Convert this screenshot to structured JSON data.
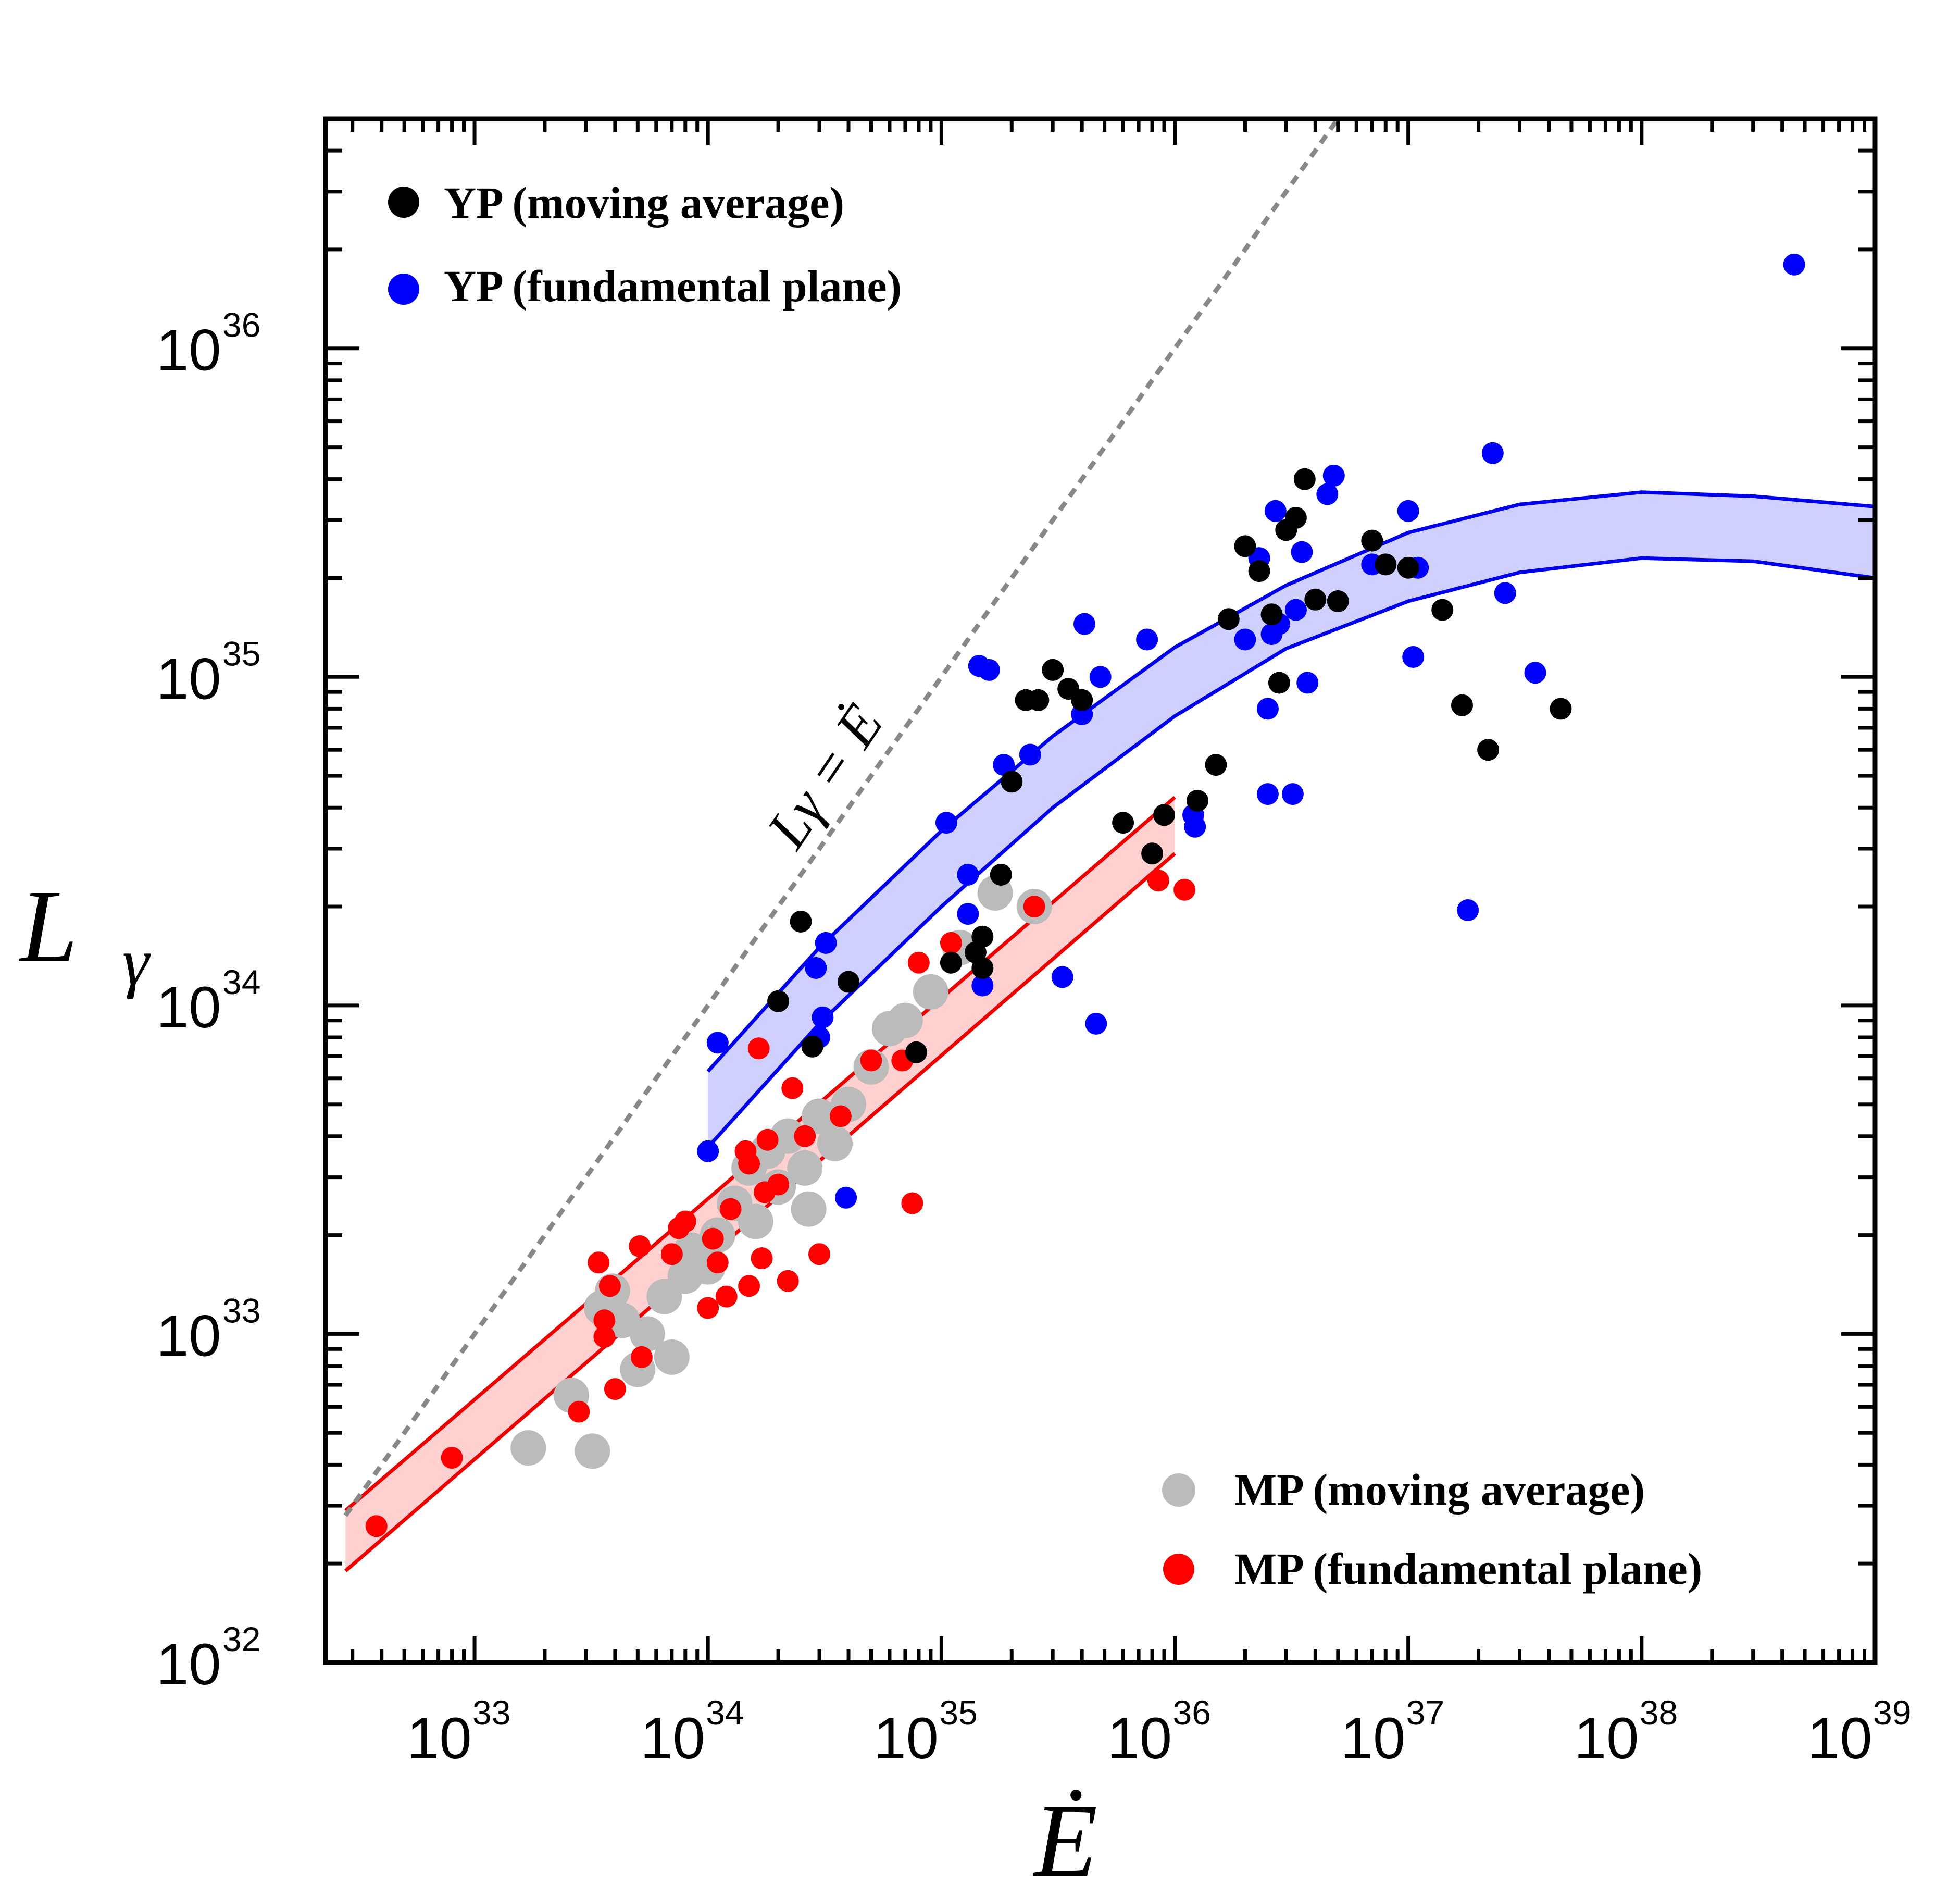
{
  "chart_data": {
    "type": "scatter",
    "xscale": "log",
    "yscale": "log",
    "xlim": [
      2.3e+32,
      1e+39
    ],
    "ylim": [
      1e+32,
      5e+36
    ],
    "ylabel": "L",
    "ylabel_sub": "γ",
    "xlabel": "Ė",
    "diagonal_label": "Lγ = Ė",
    "x_ticks": [
      {
        "base": "10",
        "exp": "33",
        "value": 1e+33
      },
      {
        "base": "10",
        "exp": "34",
        "value": 1e+34
      },
      {
        "base": "10",
        "exp": "35",
        "value": 1e+35
      },
      {
        "base": "10",
        "exp": "36",
        "value": 1e+36
      },
      {
        "base": "10",
        "exp": "37",
        "value": 1e+37
      },
      {
        "base": "10",
        "exp": "38",
        "value": 1e+38
      },
      {
        "base": "10",
        "exp": "39",
        "value": 1e+39
      }
    ],
    "y_ticks": [
      {
        "base": "10",
        "exp": "32",
        "value": 1e+32
      },
      {
        "base": "10",
        "exp": "33",
        "value": 1e+33
      },
      {
        "base": "10",
        "exp": "34",
        "value": 1e+34
      },
      {
        "base": "10",
        "exp": "35",
        "value": 1e+35
      },
      {
        "base": "10",
        "exp": "36",
        "value": 1e+36
      }
    ],
    "legend": {
      "top_left": [
        {
          "label": "YP (moving average)",
          "color": "#000000"
        },
        {
          "label": "YP (fundamental plane)",
          "color": "#0000ff"
        }
      ],
      "bottom_right": [
        {
          "label": "MP (moving average)",
          "color": "#bbbbbb"
        },
        {
          "label": "MP (fundamental plane)",
          "color": "#ff0000"
        }
      ]
    },
    "bands": [
      {
        "name": "YP band",
        "line_color": "#0000ee",
        "fill_color": "#c8c8ff",
        "upper": [
          [
            1e+34,
            6.3e+33
          ],
          [
            3e+34,
            1.5e+34
          ],
          [
            1e+35,
            3.4e+34
          ],
          [
            3e+35,
            6.6e+34
          ],
          [
            1e+36,
            1.23e+35
          ],
          [
            3e+36,
            1.9e+35
          ],
          [
            1e+37,
            2.75e+35
          ],
          [
            3e+37,
            3.35e+35
          ],
          [
            1e+38,
            3.65e+35
          ],
          [
            3e+38,
            3.55e+35
          ],
          [
            1e+39,
            3.3e+35
          ]
        ],
        "lower": [
          [
            1e+34,
            3.7e+33
          ],
          [
            3e+34,
            8.8e+33
          ],
          [
            1e+35,
            2e+34
          ],
          [
            3e+35,
            4e+34
          ],
          [
            1e+36,
            7.6e+34
          ],
          [
            3e+36,
            1.22e+35
          ],
          [
            1e+37,
            1.7e+35
          ],
          [
            3e+37,
            2.08e+35
          ],
          [
            1e+38,
            2.3e+35
          ],
          [
            3e+38,
            2.25e+35
          ],
          [
            1e+39,
            2e+35
          ]
        ]
      },
      {
        "name": "MP band",
        "line_color": "#ee0000",
        "fill_color": "#ffc8c8",
        "upper": [
          [
            2.8e+32,
            2.9e+32
          ],
          [
            1e+36,
            4.3e+34
          ]
        ],
        "lower": [
          [
            2.8e+32,
            1.9e+32
          ],
          [
            1e+36,
            2.9e+34
          ]
        ]
      }
    ],
    "series": [
      {
        "name": "YP (moving average)",
        "color": "#000000",
        "points": [
          [
            2.5e+34,
            1.8e+34
          ],
          [
            2e+34,
            1.03e+34
          ],
          [
            2.8e+34,
            7.5e+33
          ],
          [
            4e+34,
            1.18e+34
          ],
          [
            7.8e+34,
            7.2e+33
          ],
          [
            1.1e+35,
            1.35e+34
          ],
          [
            1.5e+35,
            1.62e+34
          ],
          [
            1.4e+35,
            1.45e+34
          ],
          [
            1.5e+35,
            1.3e+34
          ],
          [
            1.8e+35,
            2.5e+34
          ],
          [
            2e+35,
            4.8e+34
          ],
          [
            2.3e+35,
            8.5e+34
          ],
          [
            2.6e+35,
            8.5e+34
          ],
          [
            3e+35,
            1.05e+35
          ],
          [
            3.5e+35,
            9.2e+34
          ],
          [
            4e+35,
            8.5e+34
          ],
          [
            6e+35,
            3.6e+34
          ],
          [
            8e+35,
            2.9e+34
          ],
          [
            9e+35,
            3.8e+34
          ],
          [
            1.25e+36,
            4.2e+34
          ],
          [
            1.5e+36,
            5.4e+34
          ],
          [
            1.7e+36,
            1.5e+35
          ],
          [
            2e+36,
            2.5e+35
          ],
          [
            2.3e+36,
            2.1e+35
          ],
          [
            2.6e+36,
            1.55e+35
          ],
          [
            2.8e+36,
            9.6e+34
          ],
          [
            3e+36,
            2.8e+35
          ],
          [
            3.3e+36,
            3.05e+35
          ],
          [
            3.6e+36,
            4e+35
          ],
          [
            4e+36,
            1.72e+35
          ],
          [
            5e+36,
            1.7e+35
          ],
          [
            7e+36,
            2.6e+35
          ],
          [
            8e+36,
            2.2e+35
          ],
          [
            1e+37,
            2.15e+35
          ],
          [
            1.4e+37,
            1.6e+35
          ],
          [
            1.7e+37,
            8.2e+34
          ],
          [
            2.2e+37,
            6e+34
          ],
          [
            4.5e+37,
            8e+34
          ]
        ]
      },
      {
        "name": "YP (fundamental plane)",
        "color": "#0000ff",
        "points": [
          [
            1e+34,
            3.6e+33
          ],
          [
            1.1e+34,
            7.7e+33
          ],
          [
            2.9e+34,
            1.3e+34
          ],
          [
            3.1e+34,
            9.2e+33
          ],
          [
            3.2e+34,
            1.55e+34
          ],
          [
            3e+34,
            8e+33
          ],
          [
            3.9e+34,
            2.6e+33
          ],
          [
            1.05e+35,
            3.6e+34
          ],
          [
            1.3e+35,
            2.5e+34
          ],
          [
            1.3e+35,
            1.9e+34
          ],
          [
            1.45e+35,
            1.08e+35
          ],
          [
            1.6e+35,
            1.05e+35
          ],
          [
            1.5e+35,
            1.15e+34
          ],
          [
            1.8e+35,
            2.5e+34
          ],
          [
            1.85e+35,
            5.4e+34
          ],
          [
            2.4e+35,
            5.8e+34
          ],
          [
            3.3e+35,
            1.22e+34
          ],
          [
            4e+35,
            7.7e+34
          ],
          [
            4.1e+35,
            1.45e+35
          ],
          [
            4.6e+35,
            8.8e+33
          ],
          [
            4.8e+35,
            1e+35
          ],
          [
            7.6e+35,
            1.3e+35
          ],
          [
            1.2e+36,
            3.8e+34
          ],
          [
            1.22e+36,
            3.5e+34
          ],
          [
            2e+36,
            1.3e+35
          ],
          [
            2.3e+36,
            2.3e+35
          ],
          [
            2.5e+36,
            8e+34
          ],
          [
            2.5e+36,
            4.4e+34
          ],
          [
            2.6e+36,
            1.35e+35
          ],
          [
            2.7e+36,
            3.2e+35
          ],
          [
            2.8e+36,
            1.45e+35
          ],
          [
            3.2e+36,
            4.4e+34
          ],
          [
            3.3e+36,
            1.6e+35
          ],
          [
            3.5e+36,
            2.4e+35
          ],
          [
            3.7e+36,
            9.6e+34
          ],
          [
            4.5e+36,
            3.6e+35
          ],
          [
            4.8e+36,
            4.1e+35
          ],
          [
            7e+36,
            2.2e+35
          ],
          [
            1e+37,
            3.2e+35
          ],
          [
            1.05e+37,
            1.15e+35
          ],
          [
            1.1e+37,
            2.15e+35
          ],
          [
            1.8e+37,
            1.95e+34
          ],
          [
            2.3e+37,
            4.8e+35
          ],
          [
            2.6e+37,
            1.8e+35
          ],
          [
            3.5e+37,
            1.03e+35
          ],
          [
            4.5e+38,
            1.8e+36
          ]
        ]
      },
      {
        "name": "MP (moving average)",
        "color": "#bbbbbb",
        "size": "large",
        "points": [
          [
            1.7e+33,
            4.5e+32
          ],
          [
            2.6e+33,
            6.5e+32
          ],
          [
            3.2e+33,
            4.4e+32
          ],
          [
            3.5e+33,
            1.2e+33
          ],
          [
            3.9e+33,
            1.35e+33
          ],
          [
            4.3e+33,
            1.1e+33
          ],
          [
            5e+33,
            7.8e+32
          ],
          [
            5.5e+33,
            1e+33
          ],
          [
            6.5e+33,
            1.3e+33
          ],
          [
            7e+33,
            8.5e+32
          ],
          [
            8e+33,
            1.5e+33
          ],
          [
            8.5e+33,
            1.8e+33
          ],
          [
            1e+34,
            1.6e+33
          ],
          [
            1.1e+34,
            2e+33
          ],
          [
            1.3e+34,
            2.5e+33
          ],
          [
            1.5e+34,
            3.2e+33
          ],
          [
            1.6e+34,
            2.2e+33
          ],
          [
            1.8e+34,
            3.6e+33
          ],
          [
            2e+34,
            2.8e+33
          ],
          [
            2.2e+34,
            4e+33
          ],
          [
            2.6e+34,
            3.2e+33
          ],
          [
            2.7e+34,
            2.4e+33
          ],
          [
            3e+34,
            4.6e+33
          ],
          [
            3.5e+34,
            3.8e+33
          ],
          [
            4e+34,
            5e+33
          ],
          [
            5e+34,
            6.5e+33
          ],
          [
            6e+34,
            8.5e+33
          ],
          [
            7e+34,
            9e+33
          ],
          [
            9e+34,
            1.1e+34
          ],
          [
            1.2e+35,
            1.5e+34
          ],
          [
            1.7e+35,
            2.2e+34
          ],
          [
            2.5e+35,
            2e+34
          ]
        ]
      },
      {
        "name": "MP (fundamental plane)",
        "color": "#ff0000",
        "points": [
          [
            3.8e+32,
            2.6e+32
          ],
          [
            8e+32,
            4.2e+32
          ],
          [
            2.8e+33,
            5.8e+32
          ],
          [
            3.4e+33,
            1.65e+33
          ],
          [
            3.6e+33,
            1.1e+33
          ],
          [
            3.6e+33,
            9.8e+32
          ],
          [
            3.8e+33,
            1.4e+33
          ],
          [
            4e+33,
            6.8e+32
          ],
          [
            5.1e+33,
            1.85e+33
          ],
          [
            5.2e+33,
            8.5e+32
          ],
          [
            7e+33,
            1.75e+33
          ],
          [
            7.5e+33,
            2.1e+33
          ],
          [
            8e+33,
            2.2e+33
          ],
          [
            1e+34,
            1.2e+33
          ],
          [
            1.05e+34,
            1.95e+33
          ],
          [
            1.1e+34,
            1.65e+33
          ],
          [
            1.2e+34,
            1.3e+33
          ],
          [
            1.25e+34,
            2.4e+33
          ],
          [
            1.45e+34,
            3.6e+33
          ],
          [
            1.5e+34,
            3.3e+33
          ],
          [
            1.5e+34,
            1.4e+33
          ],
          [
            1.65e+34,
            7.4e+33
          ],
          [
            1.7e+34,
            1.7e+33
          ],
          [
            1.75e+34,
            2.7e+33
          ],
          [
            1.8e+34,
            3.9e+33
          ],
          [
            2e+34,
            2.85e+33
          ],
          [
            2.2e+34,
            1.45e+33
          ],
          [
            2.3e+34,
            5.6e+33
          ],
          [
            2.6e+34,
            4e+33
          ],
          [
            3e+34,
            1.75e+33
          ],
          [
            3.7e+34,
            4.6e+33
          ],
          [
            5e+34,
            6.8e+33
          ],
          [
            6.8e+34,
            6.8e+33
          ],
          [
            7.5e+34,
            2.5e+33
          ],
          [
            8e+34,
            1.35e+34
          ],
          [
            1.1e+35,
            1.55e+34
          ],
          [
            2.5e+35,
            2e+34
          ],
          [
            8.5e+35,
            2.4e+34
          ],
          [
            1.1e+36,
            2.25e+34
          ]
        ]
      }
    ]
  }
}
